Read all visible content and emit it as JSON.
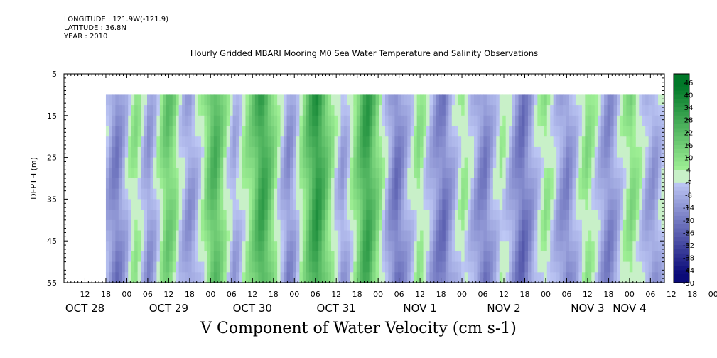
{
  "meta": {
    "longitude": "LONGITUDE : 121.9W(-121.9)",
    "latitude": "LATITUDE : 36.8N",
    "year": "YEAR : 2010"
  },
  "chart_data": {
    "type": "heatmap",
    "title": "Hourly Gridded MBARI Mooring M0 Sea Water Temperature and Salinity Observations",
    "subtitle": "V Component of Water Velocity (cm s-1)",
    "xlabel": "",
    "ylabel": "DEPTH (m)",
    "ylim": [
      5,
      55
    ],
    "y_inverted": true,
    "y_ticks": [
      "5",
      "15",
      "25",
      "35",
      "45",
      "55"
    ],
    "x_hour_ticks": [
      "12",
      "18",
      "00",
      "06",
      "12",
      "18",
      "00",
      "06",
      "12",
      "18",
      "00",
      "06",
      "12",
      "18",
      "00",
      "06",
      "12",
      "18",
      "00",
      "06",
      "12",
      "18",
      "00",
      "06",
      "12",
      "18",
      "00",
      "06",
      "12",
      "18",
      "00",
      "06"
    ],
    "x_day_labels": [
      "OCT 28",
      "OCT 29",
      "OCT 30",
      "OCT 31",
      "NOV  1",
      "NOV  2",
      "NOV  3",
      "NOV  4"
    ],
    "x_range_hours": [
      6,
      178
    ],
    "data_start_hour": 18,
    "data_depth_range": [
      10,
      55
    ],
    "colorbar": {
      "range": [
        -50,
        50
      ],
      "labels": [
        "46",
        "40",
        "34",
        "28",
        "22",
        "16",
        "10",
        "4",
        "-2",
        "-8",
        "-14",
        "-20",
        "-26",
        "-32",
        "-38",
        "-44",
        "-50"
      ]
    },
    "column_profile_v": [
      -6,
      -10,
      -14,
      -16,
      -12,
      -8,
      -4,
      2,
      6,
      8,
      4,
      -2,
      -6,
      -10,
      -8,
      -4,
      2,
      8,
      14,
      18,
      16,
      12,
      6,
      0,
      -4,
      -8,
      -10,
      -8,
      -4,
      0,
      4,
      10,
      16,
      22,
      24,
      20,
      14,
      8,
      2,
      -2,
      -6,
      -4,
      0,
      4,
      8,
      12,
      16,
      22,
      28,
      30,
      26,
      20,
      14,
      8,
      2,
      -4,
      -8,
      -12,
      -10,
      -6,
      0,
      6,
      12,
      18,
      24,
      30,
      34,
      30,
      24,
      18,
      12,
      6,
      0,
      -4,
      -8,
      -6,
      -2,
      4,
      10,
      16,
      22,
      28,
      30,
      26,
      20,
      14,
      8,
      2,
      -4,
      -10,
      -14,
      -18,
      -16,
      -12,
      -8,
      -4,
      0,
      4,
      8,
      6,
      2,
      -2,
      -6,
      -10,
      -14,
      -16,
      -18,
      -14,
      -10,
      -6,
      -2,
      2,
      6,
      4,
      0,
      -4,
      -8,
      -12,
      -14,
      -16,
      -12,
      -8,
      -4,
      0,
      4,
      2,
      -2,
      -6,
      -10,
      -14,
      -18,
      -20,
      -16,
      -12,
      -8,
      -4,
      0,
      4,
      8,
      6,
      2,
      -2,
      -6,
      -10,
      -12,
      -14,
      -10,
      -6,
      -2,
      2,
      6,
      10,
      8,
      4,
      0,
      -4,
      -8,
      -12,
      -14,
      -12,
      -8,
      -4,
      0,
      4,
      8,
      12,
      10,
      6,
      2,
      -2,
      -6,
      -8,
      -10,
      -8,
      -4,
      0
    ]
  }
}
